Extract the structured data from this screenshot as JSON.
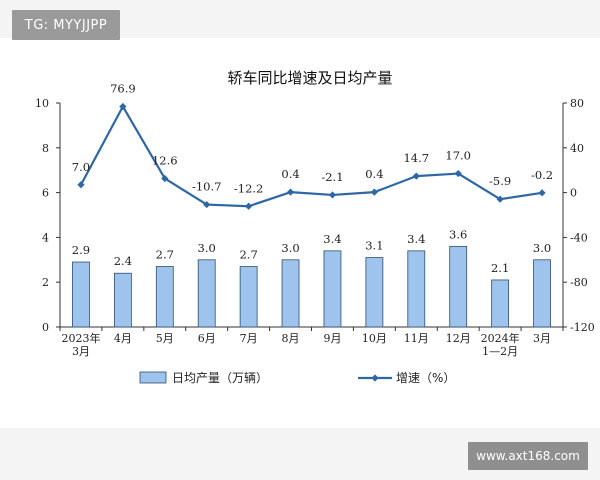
{
  "watermark_top": "TG: MYYJJPP",
  "watermark_bottom": "www.axt168.com",
  "chart_data": {
    "type": "bar+line",
    "title": "轿车同比增速及日均产量",
    "categories": [
      [
        "2023年",
        "3月"
      ],
      [
        "4月"
      ],
      [
        "5月"
      ],
      [
        "6月"
      ],
      [
        "7月"
      ],
      [
        "8月"
      ],
      [
        "9月"
      ],
      [
        "10月"
      ],
      [
        "11月"
      ],
      [
        "12月"
      ],
      [
        "2024年",
        "1—2月"
      ],
      [
        "3月"
      ]
    ],
    "bar_series": {
      "name": "日均产量（万辆）",
      "values": [
        2.9,
        2.4,
        2.7,
        3.0,
        2.7,
        3.0,
        3.4,
        3.1,
        3.4,
        3.6,
        2.1,
        3.0
      ],
      "labels": [
        "2.9",
        "2.4",
        "2.7",
        "3.0",
        "2.7",
        "3.0",
        "3.4",
        "3.1",
        "3.4",
        "3.6",
        "2.1",
        "3.0"
      ],
      "axis": "left",
      "color": "#9ec3ec",
      "border": "#2f4f6f"
    },
    "line_series": {
      "name": "增速（%）",
      "values": [
        7.0,
        76.9,
        12.6,
        -10.7,
        -12.2,
        0.4,
        -2.1,
        0.4,
        14.7,
        17.0,
        -5.9,
        -0.2
      ],
      "labels": [
        "7.0",
        "76.9",
        "12.6",
        "-10.7",
        "-12.2",
        "0.4",
        "-2.1",
        "0.4",
        "14.7",
        "17.0",
        "-5.9",
        "-0.2"
      ],
      "axis": "right",
      "color": "#2e67a6"
    },
    "left_axis": {
      "range": [
        0,
        10
      ],
      "ticks": [
        "0",
        "2",
        "4",
        "6",
        "8",
        "10"
      ]
    },
    "right_axis": {
      "range": [
        -120,
        80
      ],
      "ticks": [
        "-120",
        "-80",
        "-40",
        "0",
        "40",
        "80"
      ]
    },
    "grid": false,
    "legend_position": "bottom"
  }
}
